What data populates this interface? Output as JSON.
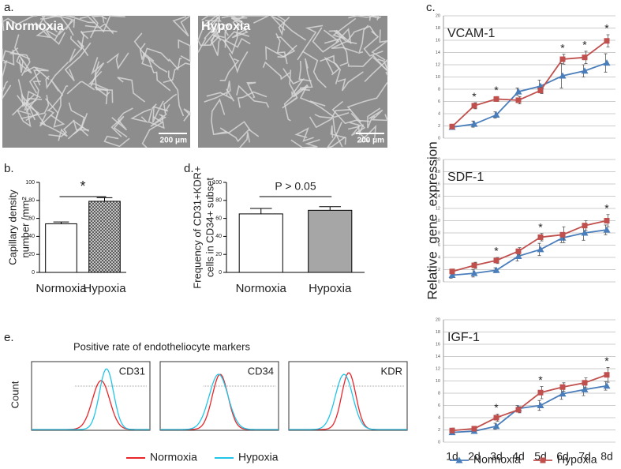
{
  "panel_labels": [
    "a.",
    "b.",
    "c.",
    "d.",
    "e."
  ],
  "images": [
    {
      "label": "Normoxia",
      "scale": "200 μm"
    },
    {
      "label": "Hypoxia",
      "scale": "200 μm"
    }
  ],
  "chart_data": [
    {
      "type": "bar",
      "ylabel": [
        "Capillary density",
        "number /mm²"
      ],
      "categories": [
        "Normoxia",
        "Hypoxia"
      ],
      "values": [
        54,
        79
      ],
      "errors": [
        2,
        4
      ],
      "colors": [
        "#ffffff",
        "#8c8c8c"
      ],
      "hatch": [
        false,
        true
      ],
      "ylim": [
        0,
        100
      ],
      "yticks": [
        0,
        20,
        40,
        60,
        80,
        100
      ],
      "annotation": "*"
    },
    {
      "type": "bar",
      "ylabel": [
        "Frequency of CD31+KDR+",
        "cells in CD34+ subset"
      ],
      "categories": [
        "Normoxia",
        "Hypoxia"
      ],
      "values": [
        65,
        69
      ],
      "errors": [
        6,
        4
      ],
      "colors": [
        "#ffffff",
        "#a6a6a6"
      ],
      "hatch": [
        false,
        false
      ],
      "ylim": [
        0,
        100
      ],
      "yticks": [
        0,
        20,
        40,
        60,
        80,
        100
      ],
      "annotation": "P > 0.05"
    },
    {
      "type": "line",
      "title": "VCAM-1",
      "ylim": [
        0,
        20
      ],
      "yticks": [
        0,
        2,
        4,
        6,
        8,
        10,
        12,
        14,
        16,
        18,
        20
      ],
      "grid": true,
      "series": [
        {
          "color": "#4a7ebb",
          "marker": "triangle",
          "values": [
            1.8,
            2.3,
            3.8,
            7.6,
            8.5,
            10.2,
            11.0,
            12.3
          ],
          "errors": [
            0.4,
            0.5,
            0.5,
            0.6,
            1.0,
            2.0,
            1.0,
            1.5
          ]
        },
        {
          "color": "#c0504d",
          "marker": "square",
          "values": [
            1.9,
            5.3,
            6.4,
            6.2,
            7.8,
            12.9,
            13.2,
            15.9
          ],
          "errors": [
            0.3,
            0.5,
            0.4,
            0.6,
            0.5,
            0.8,
            1.0,
            1.0
          ]
        }
      ],
      "significance": [
        null,
        "*",
        "*",
        null,
        null,
        "*",
        "*",
        "*"
      ]
    },
    {
      "type": "line",
      "title": "SDF-1",
      "ylabel": "Relative  gene  expression",
      "ylim": [
        0,
        20
      ],
      "yticks": [
        0,
        2,
        4,
        6,
        8,
        10,
        12,
        14,
        16,
        18,
        20
      ],
      "grid": true,
      "series": [
        {
          "color": "#4a7ebb",
          "marker": "triangle",
          "values": [
            1.1,
            1.4,
            1.9,
            4.2,
            5.3,
            7.2,
            8.0,
            8.5
          ],
          "errors": [
            0.5,
            0.6,
            0.4,
            0.8,
            1.0,
            0.8,
            1.2,
            0.8
          ]
        },
        {
          "color": "#c0504d",
          "marker": "square",
          "values": [
            1.7,
            2.7,
            3.5,
            5.0,
            7.3,
            7.7,
            9.2,
            10.0
          ],
          "errors": [
            0.4,
            0.5,
            0.5,
            0.6,
            0.6,
            1.3,
            0.8,
            1.0
          ]
        }
      ],
      "significance": [
        null,
        null,
        "*",
        null,
        "*",
        null,
        null,
        "*"
      ]
    },
    {
      "type": "line",
      "title": "IGF-1",
      "categories": [
        "1d",
        "2d",
        "3d",
        "4d",
        "5d",
        "6d",
        "7d",
        "8d"
      ],
      "ylim": [
        0,
        20
      ],
      "yticks": [
        0,
        2,
        4,
        6,
        8,
        10,
        12,
        14,
        16,
        18,
        20
      ],
      "grid": true,
      "series": [
        {
          "name": "Normoxia",
          "color": "#4a7ebb",
          "marker": "triangle",
          "values": [
            1.6,
            1.8,
            2.6,
            5.5,
            6.0,
            7.9,
            8.6,
            9.2
          ],
          "errors": [
            0.3,
            0.4,
            0.5,
            0.5,
            0.8,
            0.9,
            1.0,
            0.7
          ]
        },
        {
          "name": "Hypoxia",
          "color": "#c0504d",
          "marker": "square",
          "values": [
            1.9,
            2.2,
            4.0,
            5.3,
            8.1,
            9.0,
            9.7,
            11.0
          ],
          "errors": [
            0.4,
            0.4,
            0.6,
            0.5,
            1.0,
            0.7,
            0.8,
            1.2
          ]
        }
      ],
      "significance": [
        null,
        null,
        "*",
        null,
        "*",
        null,
        null,
        "*"
      ]
    },
    {
      "type": "density",
      "title": "Positive rate of endotheliocyte markers",
      "ylabel": "Count",
      "panels": [
        "CD31",
        "CD34",
        "KDR"
      ],
      "series": [
        {
          "name": "Normoxia",
          "color": "#e8262b"
        },
        {
          "name": "Hypoxia",
          "color": "#22c5e8"
        }
      ]
    }
  ]
}
